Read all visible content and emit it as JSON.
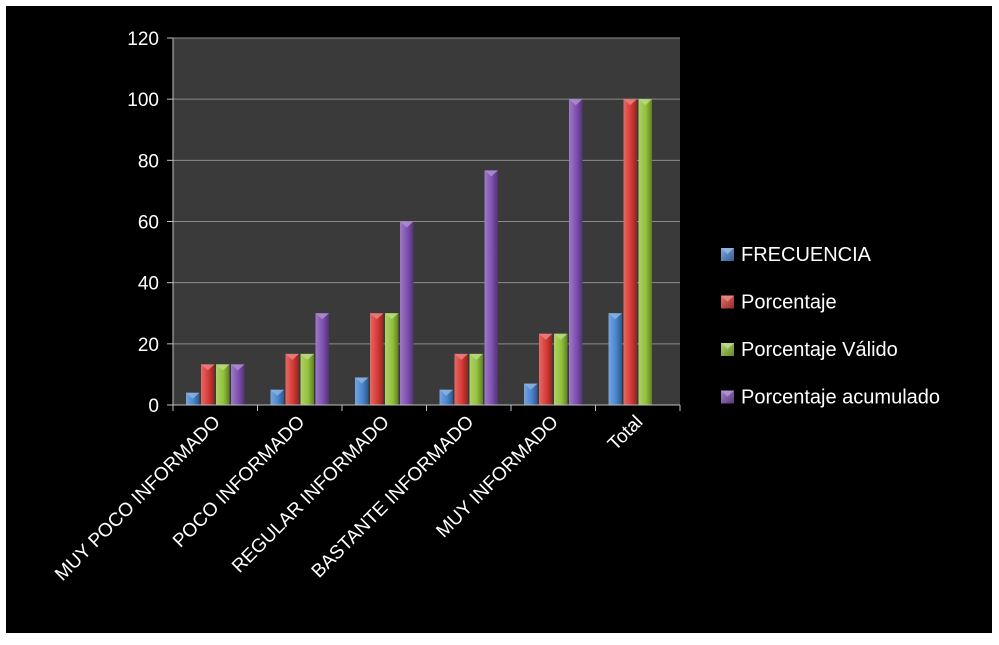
{
  "chart_data": {
    "type": "bar",
    "categories": [
      "MUY POCO INFORMADO",
      "POCO INFORMADO",
      "REGULAR INFORMADO",
      "BASTANTE INFORMADO",
      "MUY INFORMADO",
      "Total"
    ],
    "series": [
      {
        "name": "FRECUENCIA",
        "values": [
          4,
          5,
          9,
          5,
          7,
          30
        ],
        "color": "#4A86D0"
      },
      {
        "name": "Porcentaje",
        "values": [
          13.3,
          16.7,
          30,
          16.7,
          23.3,
          100
        ],
        "color": "#D83A35"
      },
      {
        "name": "Porcentaje Válido",
        "values": [
          13.3,
          16.7,
          30,
          16.7,
          23.3,
          100
        ],
        "color": "#93C23A"
      },
      {
        "name": "Porcentaje acumulado",
        "values": [
          13.3,
          30,
          60,
          76.7,
          100,
          null
        ],
        "color": "#7E4FB0"
      }
    ],
    "ylim": [
      0,
      120
    ],
    "yticks": [
      "0",
      "20",
      "40",
      "60",
      "80",
      "100",
      "120"
    ],
    "grid": true,
    "legend_position": "right",
    "plot_background": "#3a3a3a",
    "figure_background": "#000000"
  }
}
